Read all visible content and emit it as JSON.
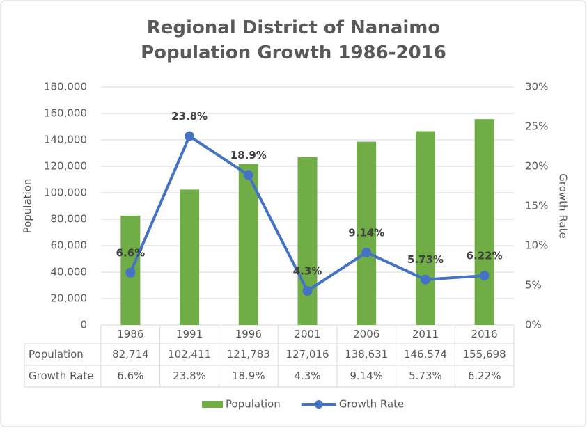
{
  "chart_data": {
    "type": "bar-line",
    "title": "Regional District of Nanaimo Population Growth 1986-2016",
    "y_label": "Population",
    "y2_label": "Growth Rate",
    "categories": [
      "1986",
      "1991",
      "1996",
      "2001",
      "2006",
      "2011",
      "2016"
    ],
    "series": [
      {
        "name": "Population",
        "type": "bar",
        "color": "#70ad47",
        "values": [
          82714,
          102411,
          121783,
          127016,
          138631,
          146574,
          155698
        ],
        "value_labels": [
          "82,714",
          "102,411",
          "121,783",
          "127,016",
          "138,631",
          "146,574",
          "155,698"
        ]
      },
      {
        "name": "Growth Rate",
        "type": "line",
        "axis": "y2",
        "color": "#4472c4",
        "values": [
          6.6,
          23.8,
          18.9,
          4.3,
          9.14,
          5.73,
          6.22
        ],
        "value_labels": [
          "6.6%",
          "23.8%",
          "18.9%",
          "4.3%",
          "9.14%",
          "5.73%",
          "6.22%"
        ]
      }
    ],
    "ylim": [
      0,
      180000
    ],
    "yticks": [
      0,
      {
        "value": 20000,
        "label": "20,000"
      },
      {
        "value": 40000,
        "label": "40,000"
      },
      {
        "value": 60000,
        "label": "60,000"
      },
      {
        "value": 80000,
        "label": "80,000"
      },
      {
        "value": 100000,
        "label": "100,000"
      },
      {
        "value": 120000,
        "label": "120,000"
      },
      {
        "value": 140000,
        "label": "140,000"
      },
      {
        "value": 160000,
        "label": "160,000"
      },
      {
        "value": 180000,
        "label": "180,000"
      }
    ],
    "y2lim": [
      0,
      30
    ],
    "y2ticks": [
      {
        "value": 0,
        "label": "0%"
      },
      {
        "value": 5,
        "label": "5%"
      },
      {
        "value": 10,
        "label": "10%"
      },
      {
        "value": 15,
        "label": "15%"
      },
      {
        "value": 20,
        "label": "20%"
      },
      {
        "value": 25,
        "label": "25%"
      },
      {
        "value": 30,
        "label": "30%"
      }
    ],
    "grid": true,
    "legend": "bottom",
    "data_table": true
  }
}
